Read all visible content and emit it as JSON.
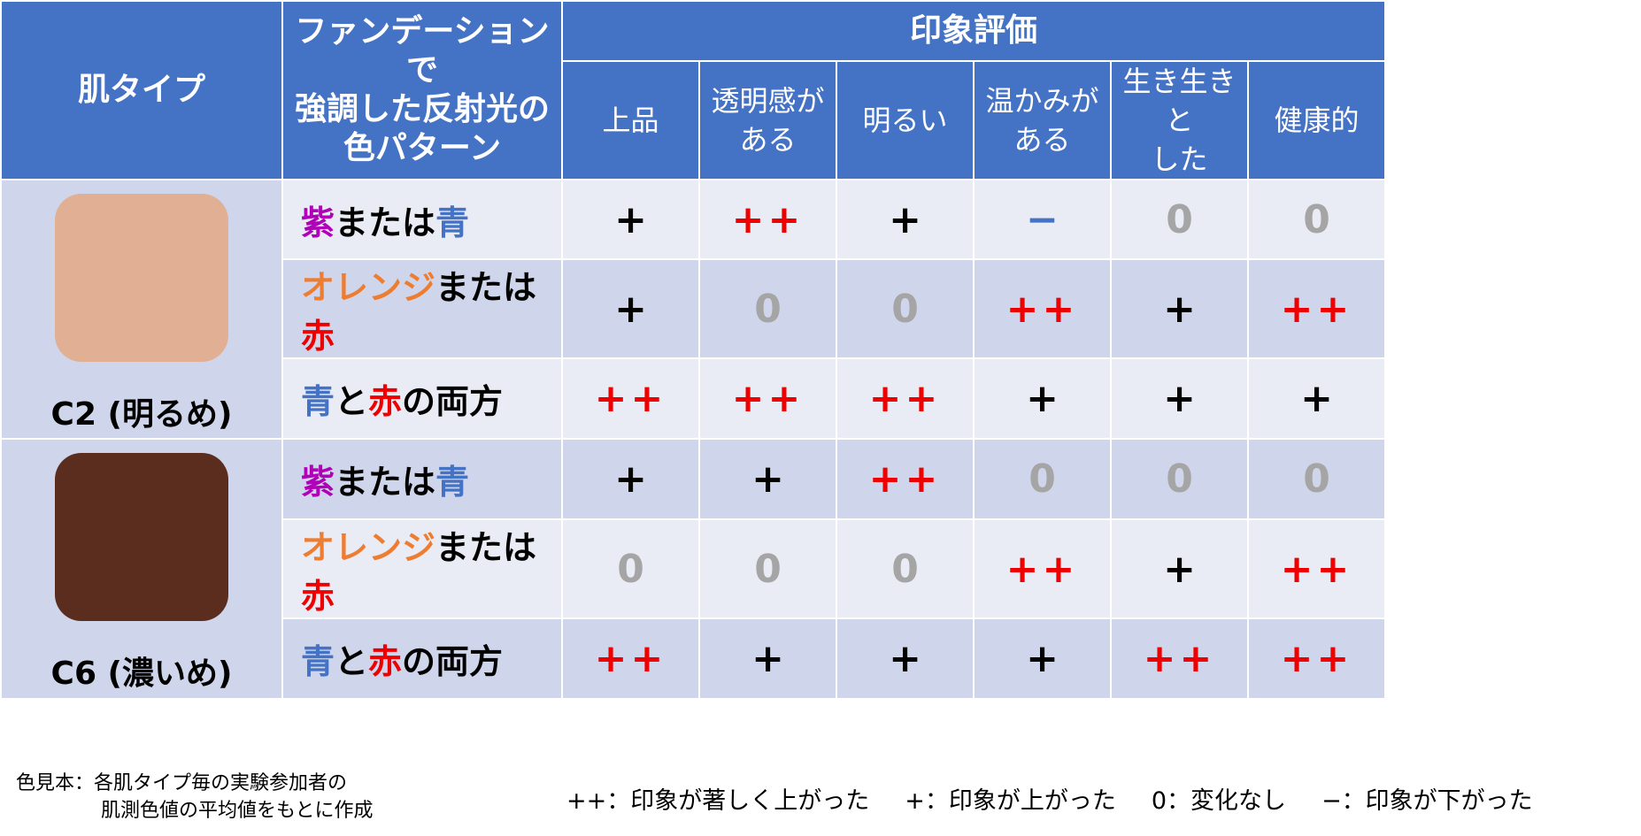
{
  "header": {
    "skin_type": "肌タイプ",
    "pattern": "ファンデーションで強調した反射光の色パターン",
    "pattern_lines": [
      "ファンデーションで",
      "強調した反射光の",
      "色パターン"
    ],
    "impression": "印象評価",
    "columns": [
      {
        "lines": [
          "上品"
        ]
      },
      {
        "lines": [
          "透明感が",
          "ある"
        ]
      },
      {
        "lines": [
          "明るい"
        ]
      },
      {
        "lines": [
          "温かみが",
          "ある"
        ]
      },
      {
        "lines": [
          "生き生きと",
          "した"
        ]
      },
      {
        "lines": [
          "健康的"
        ]
      }
    ]
  },
  "colors": {
    "header_bg": "#4472c4",
    "band_a": "#e9ebf5",
    "band_b": "#cfd5ea",
    "purple": "#b000b8",
    "blue": "#4472c4",
    "orange": "#ed7d31",
    "red": "#ee0000",
    "gray": "#a5a5a5"
  },
  "groups": [
    {
      "label": "C2 (明るめ)",
      "swatch_color": "#e1b094",
      "rows": [
        {
          "pattern": [
            {
              "t": "紫",
              "c": "purple"
            },
            {
              "t": "または"
            },
            {
              "t": "青",
              "c": "blue"
            }
          ],
          "values": [
            "+",
            "++",
            "+",
            "−",
            "0",
            "0"
          ]
        },
        {
          "pattern": [
            {
              "t": "オレンジ",
              "c": "orange"
            },
            {
              "t": "または"
            },
            {
              "t": "赤",
              "c": "red"
            }
          ],
          "values": [
            "+",
            "0",
            "0",
            "++",
            "+",
            "++"
          ]
        },
        {
          "pattern": [
            {
              "t": "青",
              "c": "blue"
            },
            {
              "t": "と"
            },
            {
              "t": "赤",
              "c": "red"
            },
            {
              "t": "の両方"
            }
          ],
          "values": [
            "++",
            "++",
            "++",
            "+",
            "+",
            "+"
          ]
        }
      ]
    },
    {
      "label": "C6 (濃いめ)",
      "swatch_color": "#5a2d1e",
      "rows": [
        {
          "pattern": [
            {
              "t": "紫",
              "c": "purple"
            },
            {
              "t": "または"
            },
            {
              "t": "青",
              "c": "blue"
            }
          ],
          "values": [
            "+",
            "+",
            "++",
            "0",
            "0",
            "0"
          ]
        },
        {
          "pattern": [
            {
              "t": "オレンジ",
              "c": "orange"
            },
            {
              "t": "または"
            },
            {
              "t": "赤",
              "c": "red"
            }
          ],
          "values": [
            "0",
            "0",
            "0",
            "++",
            "+",
            "++"
          ]
        },
        {
          "pattern": [
            {
              "t": "青",
              "c": "blue"
            },
            {
              "t": "と"
            },
            {
              "t": "赤",
              "c": "red"
            },
            {
              "t": "の両方"
            }
          ],
          "values": [
            "++",
            "+",
            "+",
            "+",
            "++",
            "++"
          ]
        }
      ]
    }
  ],
  "footer": {
    "note_line1": "色見本：各肌タイプ毎の実験参加者の",
    "note_line2": "肌測色値の平均値をもとに作成",
    "legend": [
      "++：印象が著しく上がった",
      "+：印象が上がった",
      "0：変化なし",
      "−：印象が下がった"
    ]
  }
}
